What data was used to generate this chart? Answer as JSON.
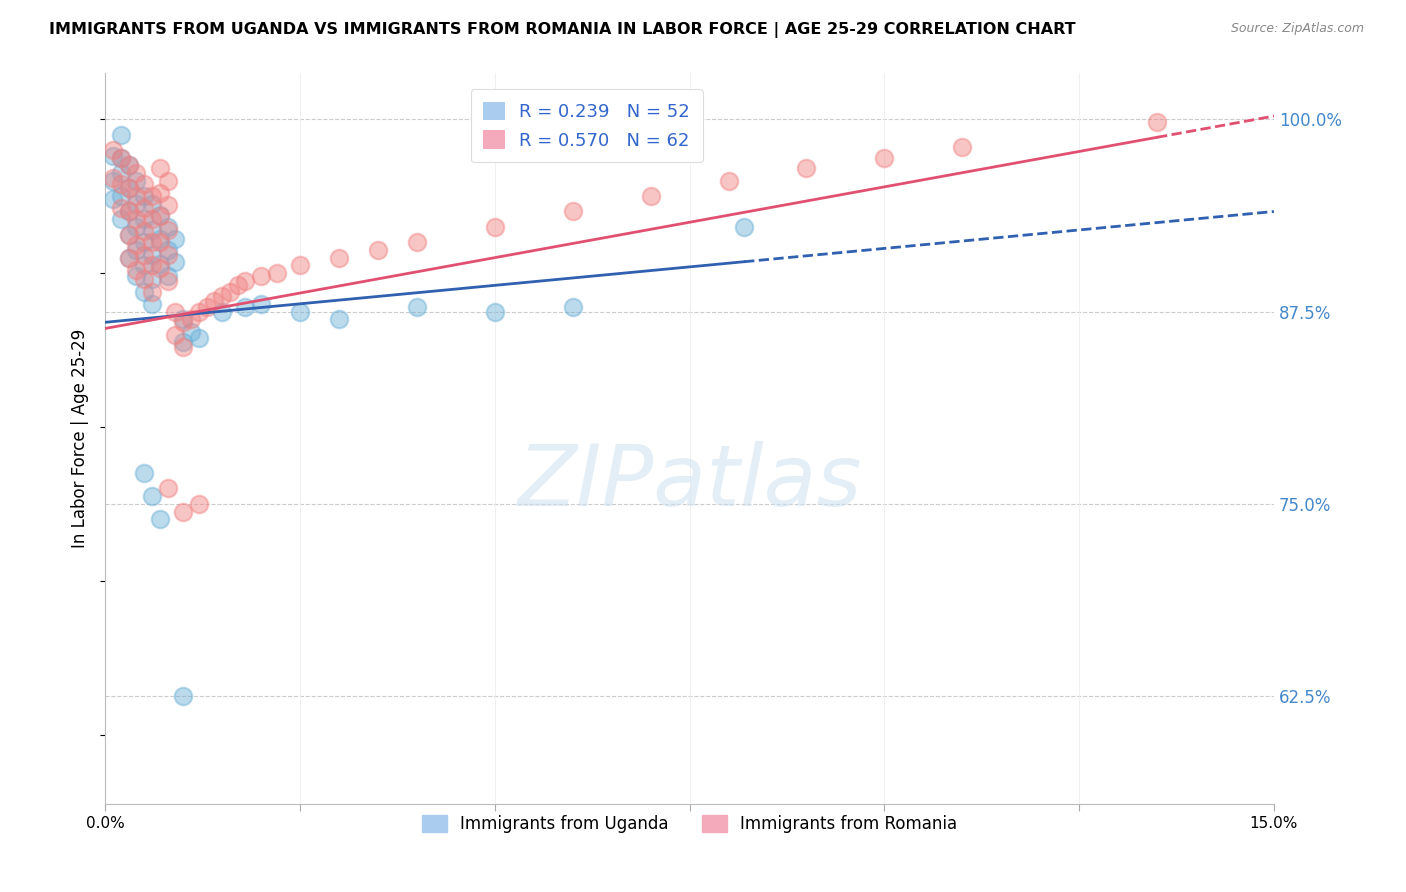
{
  "title": "IMMIGRANTS FROM UGANDA VS IMMIGRANTS FROM ROMANIA IN LABOR FORCE | AGE 25-29 CORRELATION CHART",
  "source": "Source: ZipAtlas.com",
  "ylabel": "In Labor Force | Age 25-29",
  "xlim": [
    0.0,
    0.15
  ],
  "ylim": [
    0.555,
    1.03
  ],
  "yticks_right": [
    0.625,
    0.75,
    0.875,
    1.0
  ],
  "ytick_labels_right": [
    "62.5%",
    "75.0%",
    "87.5%",
    "100.0%"
  ],
  "watermark": "ZIPatlas",
  "uganda_color": "#6aaed6",
  "romania_color": "#f08080",
  "uganda_line_color": "#3060b0",
  "romania_line_color": "#e05070",
  "uganda_line": {
    "x0": 0.0,
    "y0": 0.868,
    "x1": 0.15,
    "y1": 0.94
  },
  "romania_line": {
    "x0": 0.0,
    "y0": 0.864,
    "x1": 0.15,
    "y1": 1.002
  },
  "uganda_dash_from": 0.082,
  "romania_dash_from": 0.135,
  "uganda_scatter": [
    [
      0.001,
      0.976
    ],
    [
      0.001,
      0.96
    ],
    [
      0.001,
      0.948
    ],
    [
      0.002,
      0.965
    ],
    [
      0.002,
      0.95
    ],
    [
      0.002,
      0.935
    ],
    [
      0.002,
      0.975
    ],
    [
      0.002,
      0.99
    ],
    [
      0.003,
      0.955
    ],
    [
      0.003,
      0.94
    ],
    [
      0.003,
      0.925
    ],
    [
      0.003,
      0.97
    ],
    [
      0.003,
      0.91
    ],
    [
      0.004,
      0.96
    ],
    [
      0.004,
      0.945
    ],
    [
      0.004,
      0.93
    ],
    [
      0.004,
      0.915
    ],
    [
      0.004,
      0.898
    ],
    [
      0.005,
      0.95
    ],
    [
      0.005,
      0.935
    ],
    [
      0.005,
      0.92
    ],
    [
      0.005,
      0.905
    ],
    [
      0.005,
      0.888
    ],
    [
      0.006,
      0.945
    ],
    [
      0.006,
      0.928
    ],
    [
      0.006,
      0.912
    ],
    [
      0.006,
      0.896
    ],
    [
      0.006,
      0.88
    ],
    [
      0.007,
      0.938
    ],
    [
      0.007,
      0.922
    ],
    [
      0.007,
      0.906
    ],
    [
      0.008,
      0.93
    ],
    [
      0.008,
      0.915
    ],
    [
      0.008,
      0.898
    ],
    [
      0.009,
      0.922
    ],
    [
      0.009,
      0.907
    ],
    [
      0.01,
      0.87
    ],
    [
      0.01,
      0.855
    ],
    [
      0.011,
      0.862
    ],
    [
      0.012,
      0.858
    ],
    [
      0.015,
      0.875
    ],
    [
      0.018,
      0.878
    ],
    [
      0.02,
      0.88
    ],
    [
      0.025,
      0.875
    ],
    [
      0.03,
      0.87
    ],
    [
      0.04,
      0.878
    ],
    [
      0.05,
      0.875
    ],
    [
      0.06,
      0.878
    ],
    [
      0.082,
      0.93
    ],
    [
      0.005,
      0.77
    ],
    [
      0.006,
      0.755
    ],
    [
      0.007,
      0.74
    ],
    [
      0.01,
      0.625
    ]
  ],
  "romania_scatter": [
    [
      0.001,
      0.98
    ],
    [
      0.001,
      0.962
    ],
    [
      0.002,
      0.975
    ],
    [
      0.002,
      0.958
    ],
    [
      0.002,
      0.942
    ],
    [
      0.003,
      0.97
    ],
    [
      0.003,
      0.955
    ],
    [
      0.003,
      0.94
    ],
    [
      0.003,
      0.925
    ],
    [
      0.003,
      0.91
    ],
    [
      0.004,
      0.965
    ],
    [
      0.004,
      0.95
    ],
    [
      0.004,
      0.935
    ],
    [
      0.004,
      0.918
    ],
    [
      0.004,
      0.902
    ],
    [
      0.005,
      0.958
    ],
    [
      0.005,
      0.942
    ],
    [
      0.005,
      0.927
    ],
    [
      0.005,
      0.912
    ],
    [
      0.005,
      0.896
    ],
    [
      0.006,
      0.95
    ],
    [
      0.006,
      0.935
    ],
    [
      0.006,
      0.92
    ],
    [
      0.006,
      0.905
    ],
    [
      0.006,
      0.888
    ],
    [
      0.007,
      0.968
    ],
    [
      0.007,
      0.952
    ],
    [
      0.007,
      0.937
    ],
    [
      0.007,
      0.92
    ],
    [
      0.007,
      0.903
    ],
    [
      0.008,
      0.96
    ],
    [
      0.008,
      0.944
    ],
    [
      0.008,
      0.928
    ],
    [
      0.008,
      0.912
    ],
    [
      0.008,
      0.895
    ],
    [
      0.009,
      0.875
    ],
    [
      0.009,
      0.86
    ],
    [
      0.01,
      0.868
    ],
    [
      0.01,
      0.852
    ],
    [
      0.011,
      0.87
    ],
    [
      0.012,
      0.875
    ],
    [
      0.013,
      0.878
    ],
    [
      0.014,
      0.882
    ],
    [
      0.015,
      0.885
    ],
    [
      0.016,
      0.888
    ],
    [
      0.017,
      0.892
    ],
    [
      0.018,
      0.895
    ],
    [
      0.02,
      0.898
    ],
    [
      0.022,
      0.9
    ],
    [
      0.025,
      0.905
    ],
    [
      0.03,
      0.91
    ],
    [
      0.035,
      0.915
    ],
    [
      0.04,
      0.92
    ],
    [
      0.05,
      0.93
    ],
    [
      0.06,
      0.94
    ],
    [
      0.07,
      0.95
    ],
    [
      0.08,
      0.96
    ],
    [
      0.09,
      0.968
    ],
    [
      0.1,
      0.975
    ],
    [
      0.11,
      0.982
    ],
    [
      0.135,
      0.998
    ],
    [
      0.008,
      0.76
    ],
    [
      0.01,
      0.745
    ],
    [
      0.012,
      0.75
    ]
  ]
}
